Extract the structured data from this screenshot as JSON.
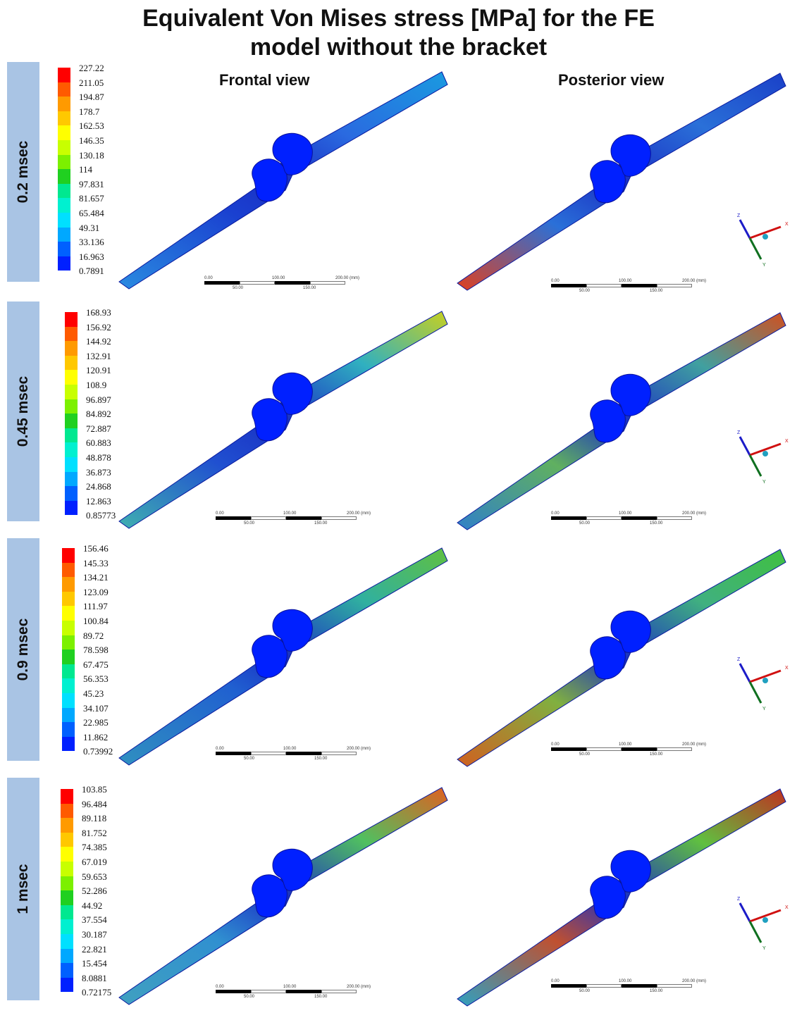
{
  "title_lines": [
    "Equivalent Von Mises stress [MPa] for the FE",
    "model without the bracket"
  ],
  "column_headers": {
    "frontal": "Frontal view",
    "posterior": "Posterior view"
  },
  "rows": [
    {
      "time": "0.2 msec",
      "legend": [
        "227.22",
        "211.05",
        "194.87",
        "178.7",
        "162.53",
        "146.35",
        "130.18",
        "114",
        "97.831",
        "81.657",
        "65.484",
        "49.31",
        "33.136",
        "16.963",
        "0.7891"
      ]
    },
    {
      "time": "0.45 msec",
      "legend": [
        "168.93",
        "156.92",
        "144.92",
        "132.91",
        "120.91",
        "108.9",
        "96.897",
        "84.892",
        "72.887",
        "60.883",
        "48.878",
        "36.873",
        "24.868",
        "12.863",
        "0.85773"
      ]
    },
    {
      "time": "0.9 msec",
      "legend": [
        "156.46",
        "145.33",
        "134.21",
        "123.09",
        "111.97",
        "100.84",
        "89.72",
        "78.598",
        "67.475",
        "56.353",
        "45.23",
        "34.107",
        "22.985",
        "11.862",
        "0.73992"
      ]
    },
    {
      "time": "1 msec",
      "legend": [
        "103.85",
        "96.484",
        "89.118",
        "81.752",
        "74.385",
        "67.019",
        "59.653",
        "52.286",
        "44.92",
        "37.554",
        "30.187",
        "22.821",
        "15.454",
        "8.0881",
        "0.72175"
      ]
    }
  ],
  "scale_bar": {
    "t0": "0.00",
    "t100": "100.00",
    "t200": "200.00 (mm)",
    "t50": "50.00",
    "t150": "150.00"
  },
  "triad": {
    "z": "Z",
    "x": "X",
    "y": "Y"
  },
  "colors": {
    "side_panel": "#a9c4e4",
    "bone_base": "#1a2fc4",
    "bone_dark": "#0a1aa0",
    "scale": [
      "#ff0000",
      "#ff5a00",
      "#ff9a00",
      "#ffc800",
      "#ffff00",
      "#c8ff00",
      "#7cf000",
      "#20d020",
      "#00e890",
      "#00f0d0",
      "#00e0ff",
      "#00a8ff",
      "#0060ff",
      "#0020ff",
      "#0000c8"
    ]
  }
}
